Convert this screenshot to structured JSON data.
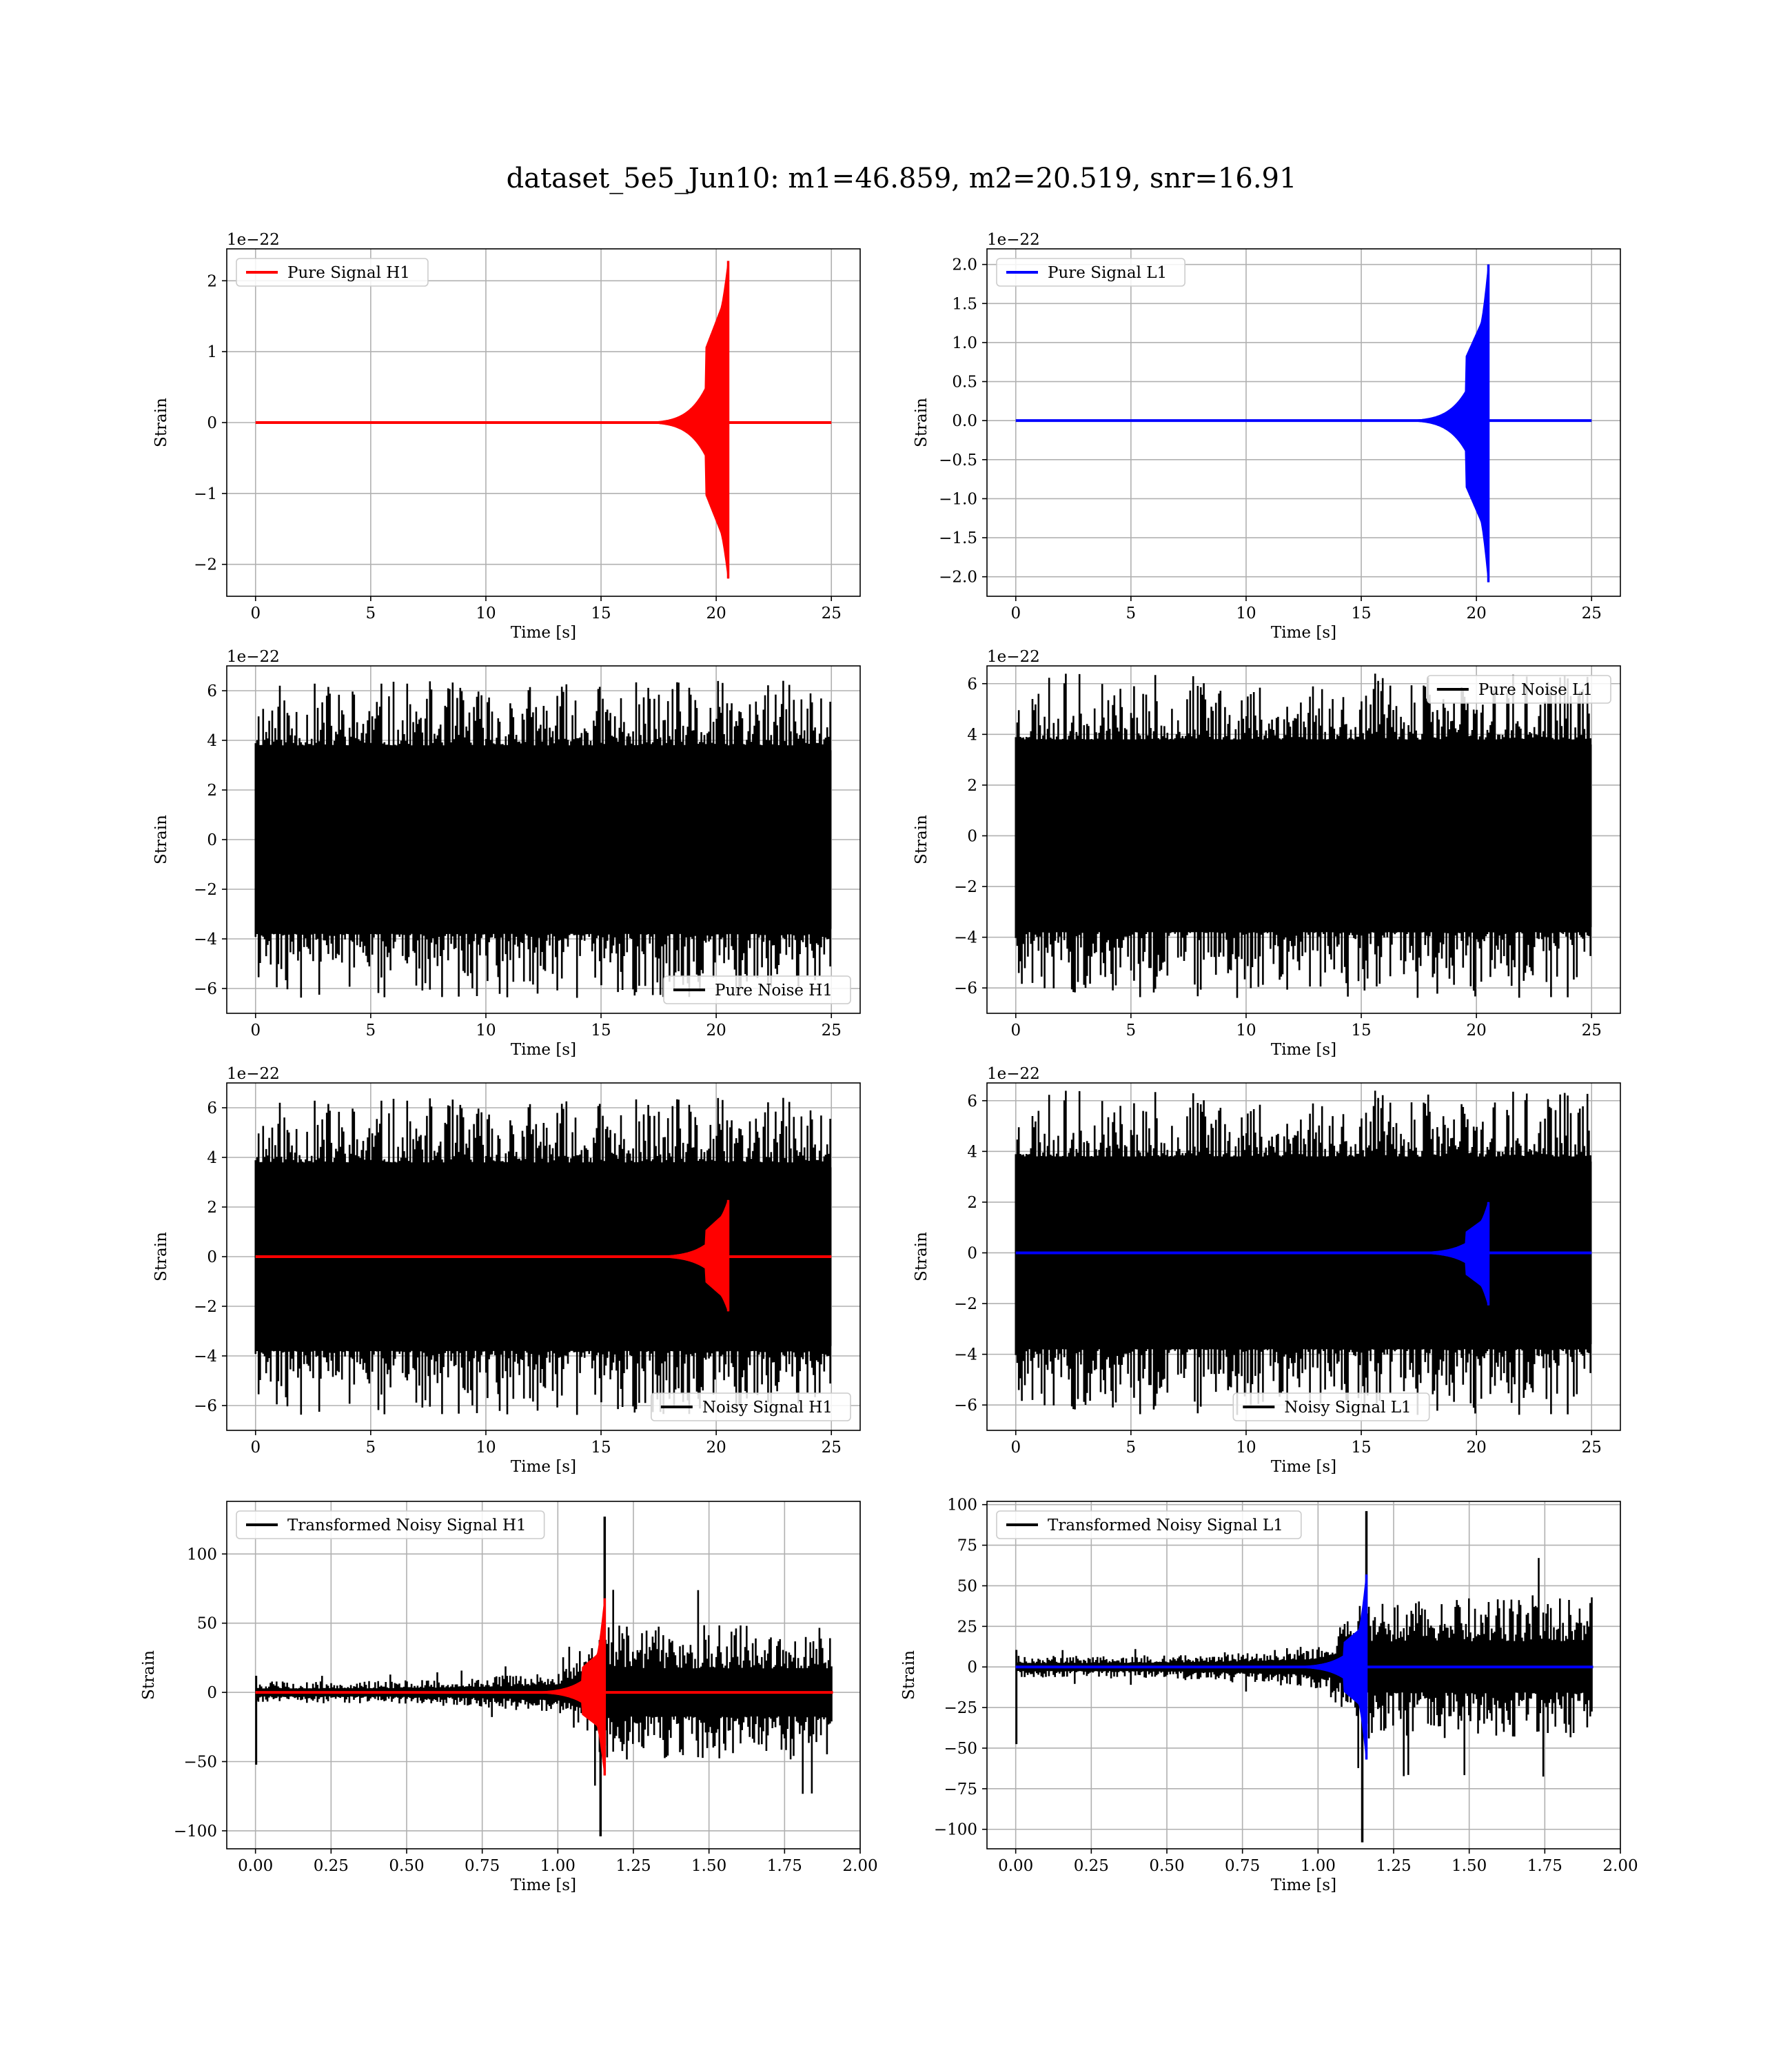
{
  "figure": {
    "suptitle": "dataset_5e5_Jun10: m1=46.859, m2=20.519, snr=16.91"
  },
  "colors": {
    "h1_signal": "#ff0000",
    "l1_signal": "#0000ff",
    "noise": "#000000",
    "grid": "#b0b0b0"
  },
  "chart_data": [
    {
      "type": "line",
      "panel": "row1-left",
      "xlabel": "Time [s]",
      "ylabel": "Strain",
      "offset_text": "1e−22",
      "xlim": [
        -1.25,
        26.25
      ],
      "ylim": [
        -2.45,
        2.45
      ],
      "xticks": [
        0,
        5,
        10,
        15,
        20,
        25
      ],
      "xtick_labels": [
        "0",
        "5",
        "10",
        "15",
        "20",
        "25"
      ],
      "yticks": [
        -2,
        -1,
        0,
        1,
        2
      ],
      "ytick_labels": [
        "−2",
        "−1",
        "0",
        "1",
        "2"
      ],
      "grid": true,
      "legend_loc": "upper-left",
      "series": [
        {
          "name": "Pure Signal H1",
          "color": "#ff0000",
          "kind": "chirp",
          "x_range": [
            0,
            25
          ],
          "merger_x": 20.52,
          "amp_pos": 2.28,
          "amp_neg": -2.2,
          "plateau": 0.7
        }
      ]
    },
    {
      "type": "line",
      "panel": "row1-right",
      "xlabel": "Time [s]",
      "ylabel": "Strain",
      "offset_text": "1e−22",
      "xlim": [
        -1.25,
        26.25
      ],
      "ylim": [
        -2.25,
        2.2
      ],
      "xticks": [
        0,
        5,
        10,
        15,
        20,
        25
      ],
      "xtick_labels": [
        "0",
        "5",
        "10",
        "15",
        "20",
        "25"
      ],
      "yticks": [
        -2.0,
        -1.5,
        -1.0,
        -0.5,
        0.0,
        0.5,
        1.0,
        1.5,
        2.0
      ],
      "ytick_labels": [
        "−2.0",
        "−1.5",
        "−1.0",
        "−0.5",
        "0.0",
        "0.5",
        "1.0",
        "1.5",
        "2.0"
      ],
      "grid": true,
      "legend_loc": "upper-left",
      "series": [
        {
          "name": "Pure Signal L1",
          "color": "#0000ff",
          "kind": "chirp",
          "x_range": [
            0,
            25
          ],
          "merger_x": 20.52,
          "amp_pos": 2.0,
          "amp_neg": -2.07,
          "plateau": 0.62
        }
      ]
    },
    {
      "type": "line",
      "panel": "row2-left",
      "xlabel": "Time [s]",
      "ylabel": "Strain",
      "offset_text": "1e−22",
      "xlim": [
        -1.25,
        26.25
      ],
      "ylim": [
        -7.0,
        7.0
      ],
      "xticks": [
        0,
        5,
        10,
        15,
        20,
        25
      ],
      "xtick_labels": [
        "0",
        "5",
        "10",
        "15",
        "20",
        "25"
      ],
      "yticks": [
        -6,
        -4,
        -2,
        0,
        2,
        4,
        6
      ],
      "ytick_labels": [
        "−6",
        "−4",
        "−2",
        "0",
        "2",
        "4",
        "6"
      ],
      "grid": true,
      "legend_loc": "lower-right",
      "series": [
        {
          "name": "Pure Noise H1",
          "color": "#000000",
          "kind": "noise",
          "x_range": [
            0,
            25
          ],
          "core": 3.6,
          "peak": 6.4,
          "seed": 11
        }
      ]
    },
    {
      "type": "line",
      "panel": "row2-right",
      "xlabel": "Time [s]",
      "ylabel": "Strain",
      "offset_text": "1e−22",
      "xlim": [
        -1.25,
        26.25
      ],
      "ylim": [
        -7.0,
        6.7
      ],
      "xticks": [
        0,
        5,
        10,
        15,
        20,
        25
      ],
      "xtick_labels": [
        "0",
        "5",
        "10",
        "15",
        "20",
        "25"
      ],
      "yticks": [
        -6,
        -4,
        -2,
        0,
        2,
        4,
        6
      ],
      "ytick_labels": [
        "−6",
        "−4",
        "−2",
        "0",
        "2",
        "4",
        "6"
      ],
      "grid": true,
      "legend_loc": "upper-right",
      "series": [
        {
          "name": "Pure Noise L1",
          "color": "#000000",
          "kind": "noise",
          "x_range": [
            0,
            25
          ],
          "core": 3.6,
          "peak": 6.4,
          "seed": 23
        }
      ]
    },
    {
      "type": "line",
      "panel": "row3-left",
      "xlabel": "Time [s]",
      "ylabel": "Strain",
      "offset_text": "1e−22",
      "xlim": [
        -1.25,
        26.25
      ],
      "ylim": [
        -7.0,
        7.0
      ],
      "xticks": [
        0,
        5,
        10,
        15,
        20,
        25
      ],
      "xtick_labels": [
        "0",
        "5",
        "10",
        "15",
        "20",
        "25"
      ],
      "yticks": [
        -6,
        -4,
        -2,
        0,
        2,
        4,
        6
      ],
      "ytick_labels": [
        "−6",
        "−4",
        "−2",
        "0",
        "2",
        "4",
        "6"
      ],
      "grid": true,
      "legend_loc": "lower-right",
      "series": [
        {
          "name": "Noisy Signal H1",
          "color": "#000000",
          "kind": "noise",
          "x_range": [
            0,
            25
          ],
          "core": 3.6,
          "peak": 6.4,
          "seed": 11
        },
        {
          "name": "",
          "color": "#ff0000",
          "kind": "chirp",
          "x_range": [
            0,
            25
          ],
          "merger_x": 20.52,
          "amp_pos": 2.28,
          "amp_neg": -2.2,
          "plateau": 0.7
        }
      ]
    },
    {
      "type": "line",
      "panel": "row3-right",
      "xlabel": "Time [s]",
      "ylabel": "Strain",
      "offset_text": "1e−22",
      "xlim": [
        -1.25,
        26.25
      ],
      "ylim": [
        -7.0,
        6.7
      ],
      "xticks": [
        0,
        5,
        10,
        15,
        20,
        25
      ],
      "xtick_labels": [
        "0",
        "5",
        "10",
        "15",
        "20",
        "25"
      ],
      "yticks": [
        -6,
        -4,
        -2,
        0,
        2,
        4,
        6
      ],
      "ytick_labels": [
        "−6",
        "−4",
        "−2",
        "0",
        "2",
        "4",
        "6"
      ],
      "grid": true,
      "legend_loc": "lower-center",
      "series": [
        {
          "name": "Noisy Signal L1",
          "color": "#000000",
          "kind": "noise",
          "x_range": [
            0,
            25
          ],
          "core": 3.6,
          "peak": 6.4,
          "seed": 23
        },
        {
          "name": "",
          "color": "#0000ff",
          "kind": "chirp",
          "x_range": [
            0,
            25
          ],
          "merger_x": 20.52,
          "amp_pos": 2.0,
          "amp_neg": -2.07,
          "plateau": 0.62
        }
      ]
    },
    {
      "type": "line",
      "panel": "row4-left",
      "xlabel": "Time [s]",
      "ylabel": "Strain",
      "offset_text": "",
      "xlim": [
        -0.095,
        2.0
      ],
      "ylim": [
        -113,
        138
      ],
      "xticks": [
        0.0,
        0.25,
        0.5,
        0.75,
        1.0,
        1.25,
        1.5,
        1.75,
        2.0
      ],
      "xtick_labels": [
        "0.00",
        "0.25",
        "0.50",
        "0.75",
        "1.00",
        "1.25",
        "1.50",
        "1.75",
        "2.00"
      ],
      "yticks": [
        -100,
        -50,
        0,
        50,
        100
      ],
      "ytick_labels": [
        "−100",
        "−50",
        "0",
        "50",
        "100"
      ],
      "grid": true,
      "legend_loc": "upper-left",
      "series": [
        {
          "name": "Transformed Noisy Signal H1",
          "color": "#000000",
          "kind": "whitened",
          "x_range": [
            0,
            1.91
          ],
          "merger_x": 1.155,
          "pre_amp": 8,
          "post_amp": 55,
          "peak_pos": 127,
          "peak_neg": -104,
          "seed": 5
        },
        {
          "name": "",
          "color": "#ff0000",
          "kind": "chirp",
          "x_range": [
            0,
            1.91
          ],
          "merger_x": 1.155,
          "amp_pos": 68,
          "amp_neg": -60,
          "plateau": 0.4
        }
      ]
    },
    {
      "type": "line",
      "panel": "row4-right",
      "xlabel": "Time [s]",
      "ylabel": "Strain",
      "offset_text": "",
      "xlim": [
        -0.095,
        2.0
      ],
      "ylim": [
        -112,
        102
      ],
      "xticks": [
        0.0,
        0.25,
        0.5,
        0.75,
        1.0,
        1.25,
        1.5,
        1.75,
        2.0
      ],
      "xtick_labels": [
        "0.00",
        "0.25",
        "0.50",
        "0.75",
        "1.00",
        "1.25",
        "1.50",
        "1.75",
        "2.00"
      ],
      "yticks": [
        -100,
        -75,
        -50,
        -25,
        0,
        25,
        50,
        75,
        100
      ],
      "ytick_labels": [
        "−100",
        "−75",
        "−50",
        "−25",
        "0",
        "25",
        "50",
        "75",
        "100"
      ],
      "grid": true,
      "legend_loc": "upper-left",
      "series": [
        {
          "name": "Transformed Noisy Signal L1",
          "color": "#000000",
          "kind": "whitened",
          "x_range": [
            0,
            1.91
          ],
          "merger_x": 1.16,
          "pre_amp": 7,
          "post_amp": 50,
          "peak_pos": 96,
          "peak_neg": -108,
          "seed": 9
        },
        {
          "name": "",
          "color": "#0000ff",
          "kind": "chirp",
          "x_range": [
            0,
            1.91
          ],
          "merger_x": 1.16,
          "amp_pos": 57,
          "amp_neg": -57,
          "plateau": 0.4
        }
      ]
    }
  ]
}
